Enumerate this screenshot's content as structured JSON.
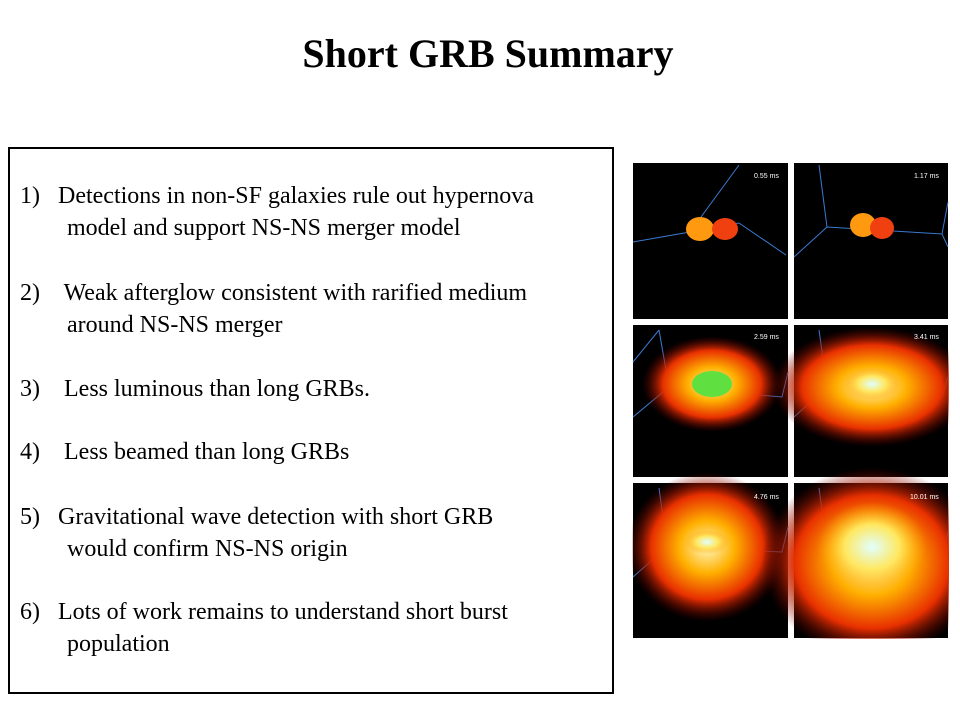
{
  "title": "Short GRB Summary",
  "items": [
    {
      "num": "1)",
      "lines": [
        "Detections in non-SF galaxies rule out hypernova",
        "model and support NS-NS merger model"
      ]
    },
    {
      "num": "2)",
      "lines": [
        "Weak afterglow consistent with rarified medium",
        "around NS-NS merger"
      ]
    },
    {
      "num": "3)",
      "lines": [
        "Less luminous than long GRBs."
      ]
    },
    {
      "num": "4)",
      "lines": [
        "Less beamed than long GRBs"
      ]
    },
    {
      "num": "5)",
      "lines": [
        "Gravitational wave detection with short GRB",
        "would confirm NS-NS origin"
      ]
    },
    {
      "num": "6)",
      "lines": [
        "Lots of work remains to understand short burst",
        "population"
      ]
    }
  ],
  "simulation_panels": [
    {
      "time": "0.55  ms"
    },
    {
      "time": "1.17  ms"
    },
    {
      "time": "2.59  ms"
    },
    {
      "time": "3.41  ms"
    },
    {
      "time": "4.76  ms"
    },
    {
      "time": "10.01  ms"
    }
  ]
}
